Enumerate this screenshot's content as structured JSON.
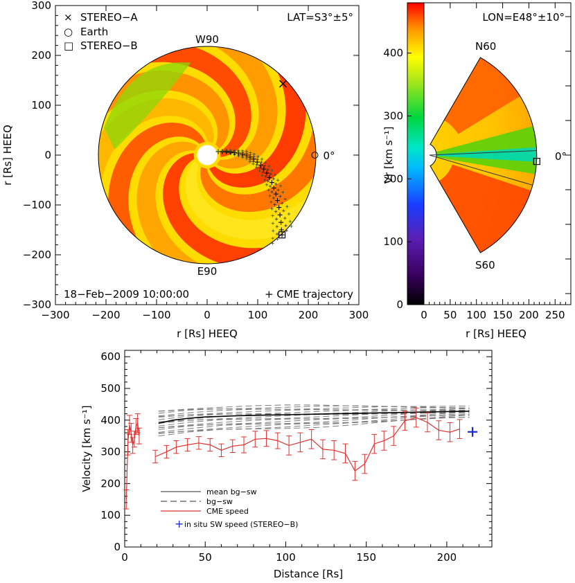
{
  "chart_data": [
    {
      "type": "heatmap",
      "panel": "equatorial-map",
      "xlabel": "r [Rs] HEEQ",
      "ylabel": "r [Rs] HEEQ",
      "xlim": [
        -300,
        300
      ],
      "ylim": [
        -300,
        300
      ],
      "xticks": [
        "−300",
        "−200",
        "−100",
        "0",
        "100",
        "200",
        "300"
      ],
      "yticks": [
        "300",
        "200",
        "100",
        "0",
        "−100",
        "−200",
        "−300"
      ],
      "lat_label": "LAT=S3°±5°",
      "date_label": "18−Feb−2009  10:00:00",
      "traj_label": "+ CME trajectory",
      "legend": [
        {
          "symbol": "×",
          "label": "STEREO−A"
        },
        {
          "symbol": "○",
          "label": "Earth"
        },
        {
          "symbol": "□",
          "label": "STEREO−B"
        }
      ],
      "w90": "W90",
      "e90": "E90",
      "zero": "0°",
      "stereo_a": {
        "x": 150,
        "y": 143
      },
      "earth": {
        "x": 213,
        "y": 0
      },
      "stereo_b": {
        "x": 148,
        "y": -160
      },
      "outer_radius": 215,
      "inner_radius": 20,
      "trajectory_center": [
        [
          22,
          7
        ],
        [
          30,
          7
        ],
        [
          38,
          7
        ],
        [
          46,
          6
        ],
        [
          54,
          5
        ],
        [
          62,
          4
        ],
        [
          70,
          2
        ],
        [
          78,
          0
        ],
        [
          85,
          -4
        ],
        [
          92,
          -8
        ],
        [
          99,
          -14
        ],
        [
          106,
          -20
        ],
        [
          112,
          -28
        ],
        [
          118,
          -36
        ],
        [
          123,
          -45
        ],
        [
          128,
          -55
        ],
        [
          132,
          -66
        ],
        [
          136,
          -78
        ],
        [
          139,
          -91
        ],
        [
          142,
          -105
        ],
        [
          144,
          -120
        ],
        [
          146,
          -135
        ],
        [
          147,
          -150
        ],
        [
          148,
          -160
        ]
      ]
    },
    {
      "type": "heatmap",
      "panel": "meridional-map",
      "xlabel": "r [Rs] HEEQ",
      "ylabel": "Vr [km s⁻¹]",
      "xlim": [
        0,
        280
      ],
      "xticks": [
        "0",
        "50",
        "100",
        "150",
        "200",
        "250"
      ],
      "colorbar_ticks": [
        "0",
        "100",
        "200",
        "300",
        "400"
      ],
      "colorbar_range": [
        0,
        480
      ],
      "lon_label": "LON=E48°±10°",
      "n60": "N60",
      "s60": "S60",
      "zero": "0°",
      "stereo_b": {
        "x": 215,
        "y": -12
      },
      "outer_radius": 215
    },
    {
      "type": "line",
      "panel": "velocity-profile",
      "xlabel": "Distance [Rs]",
      "ylabel": "Velocity [km s⁻¹]",
      "xlim": [
        0,
        228
      ],
      "ylim": [
        0,
        620
      ],
      "xticks": [
        0,
        50,
        100,
        150,
        200
      ],
      "yticks": [
        0,
        100,
        200,
        300,
        400,
        500,
        600
      ],
      "legend": [
        {
          "style": "solid-black",
          "label": "mean bg−sw"
        },
        {
          "style": "dashed-gray",
          "label": "bg−sw"
        },
        {
          "style": "solid-red",
          "label": "CME speed"
        },
        {
          "style": "blue-plus",
          "label": "in situ SW speed (STEREO−B)"
        }
      ],
      "mean_bg": {
        "x": [
          21,
          30,
          40,
          50,
          60,
          70,
          80,
          90,
          100,
          110,
          120,
          130,
          140,
          150,
          160,
          170,
          180,
          190,
          200,
          214
        ],
        "values": [
          390,
          400,
          406,
          410,
          412,
          414,
          415,
          416,
          417,
          418,
          419,
          420,
          421,
          422,
          423,
          424,
          425,
          426,
          427,
          428
        ]
      },
      "bg_envelope": {
        "x": [
          21,
          40,
          60,
          80,
          100,
          120,
          140,
          160,
          180,
          200,
          214
        ],
        "upper": [
          430,
          438,
          442,
          444,
          445,
          446,
          446,
          446,
          445,
          443,
          442
        ],
        "lower": [
          350,
          360,
          368,
          372,
          376,
          380,
          385,
          392,
          400,
          408,
          410
        ],
        "count": 18
      },
      "cme_near": {
        "x": [
          1,
          2,
          3,
          4,
          5,
          6,
          7,
          8,
          9
        ],
        "values": [
          150,
          330,
          385,
          360,
          320,
          340,
          380,
          390,
          350
        ],
        "err": [
          30,
          40,
          30,
          30,
          25,
          25,
          25,
          30,
          25
        ]
      },
      "cme_speed": {
        "x": [
          19,
          26,
          32,
          39,
          46,
          53,
          60,
          67,
          74,
          81,
          88,
          95,
          102,
          109,
          116,
          123,
          130,
          137,
          143,
          149,
          155,
          161,
          167,
          174,
          181,
          188,
          195,
          202,
          208
        ],
        "values": [
          285,
          300,
          315,
          322,
          328,
          322,
          305,
          318,
          322,
          340,
          342,
          335,
          320,
          330,
          340,
          308,
          305,
          295,
          240,
          262,
          325,
          335,
          350,
          398,
          408,
          393,
          368,
          362,
          372
        ],
        "err": [
          20,
          20,
          20,
          20,
          20,
          20,
          20,
          20,
          25,
          25,
          25,
          25,
          30,
          30,
          30,
          30,
          30,
          30,
          30,
          30,
          30,
          30,
          30,
          30,
          30,
          30,
          30,
          30,
          30
        ]
      },
      "insitu": {
        "x": 216,
        "y": 363
      }
    }
  ]
}
